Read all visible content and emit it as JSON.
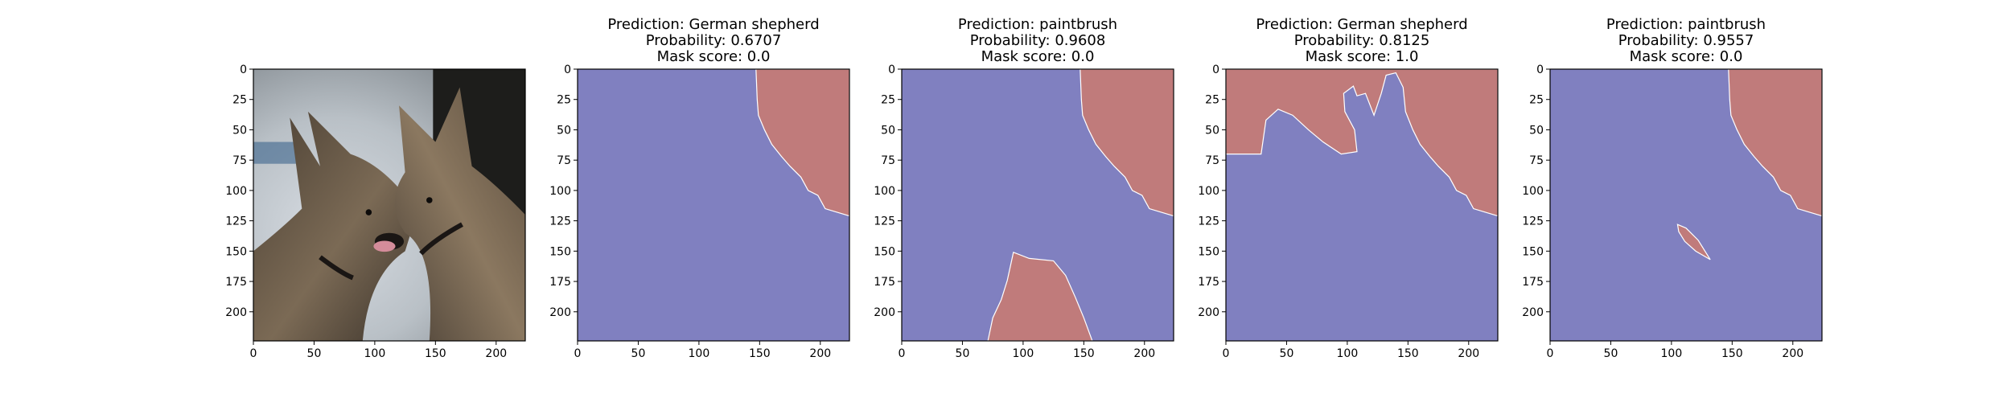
{
  "chart_data": [
    {
      "type": "image",
      "title_lines": [],
      "image": "dog-photo",
      "xticks": [
        0,
        50,
        100,
        150,
        200
      ],
      "yticks": [
        0,
        25,
        50,
        75,
        100,
        125,
        150,
        175,
        200
      ],
      "xlim": [
        0,
        224
      ],
      "ylim": [
        224,
        0
      ]
    },
    {
      "type": "heatmap",
      "title_lines": [
        "Prediction: German shepherd",
        "Probability: 0.6707",
        "Mask score: 0.0"
      ],
      "xticks": [
        0,
        50,
        100,
        150,
        200
      ],
      "yticks": [
        0,
        25,
        50,
        75,
        100,
        125,
        150,
        175,
        200
      ],
      "xlim": [
        0,
        224
      ],
      "ylim": [
        224,
        0
      ],
      "background_color": "#8080c0",
      "mask_color": "#c07b7b",
      "mask_regions": [
        [
          [
            147,
            0
          ],
          [
            224,
            0
          ],
          [
            224,
            121
          ],
          [
            214,
            118
          ],
          [
            204,
            115
          ],
          [
            198,
            104
          ],
          [
            190,
            100
          ],
          [
            184,
            89
          ],
          [
            175,
            80
          ],
          [
            168,
            72
          ],
          [
            160,
            62
          ],
          [
            154,
            50
          ],
          [
            149,
            38
          ],
          [
            148,
            25
          ]
        ]
      ]
    },
    {
      "type": "heatmap",
      "title_lines": [
        "Prediction: paintbrush",
        "Probability: 0.9608",
        "Mask score: 0.0"
      ],
      "xticks": [
        0,
        50,
        100,
        150,
        200
      ],
      "yticks": [
        0,
        25,
        50,
        75,
        100,
        125,
        150,
        175,
        200
      ],
      "xlim": [
        0,
        224
      ],
      "ylim": [
        224,
        0
      ],
      "background_color": "#8080c0",
      "mask_color": "#c07b7b",
      "mask_regions": [
        [
          [
            147,
            0
          ],
          [
            224,
            0
          ],
          [
            224,
            121
          ],
          [
            214,
            118
          ],
          [
            204,
            115
          ],
          [
            198,
            104
          ],
          [
            190,
            100
          ],
          [
            184,
            89
          ],
          [
            175,
            80
          ],
          [
            168,
            72
          ],
          [
            160,
            62
          ],
          [
            154,
            50
          ],
          [
            149,
            38
          ],
          [
            148,
            25
          ]
        ],
        [
          [
            71,
            224
          ],
          [
            75,
            205
          ],
          [
            82,
            190
          ],
          [
            87,
            174
          ],
          [
            92,
            151
          ],
          [
            105,
            156
          ],
          [
            125,
            158
          ],
          [
            135,
            170
          ],
          [
            143,
            188
          ],
          [
            150,
            205
          ],
          [
            157,
            224
          ]
        ]
      ]
    },
    {
      "type": "heatmap",
      "title_lines": [
        "Prediction: German shepherd",
        "Probability: 0.8125",
        "Mask score: 1.0"
      ],
      "xticks": [
        0,
        50,
        100,
        150,
        200
      ],
      "yticks": [
        0,
        25,
        50,
        75,
        100,
        125,
        150,
        175,
        200
      ],
      "xlim": [
        0,
        224
      ],
      "ylim": [
        224,
        0
      ],
      "background_color": "#8080c0",
      "mask_color": "#c07b7b",
      "mask_regions": [
        [
          [
            0,
            0
          ],
          [
            224,
            0
          ],
          [
            224,
            121
          ],
          [
            214,
            118
          ],
          [
            204,
            115
          ],
          [
            198,
            104
          ],
          [
            190,
            100
          ],
          [
            184,
            89
          ],
          [
            175,
            80
          ],
          [
            168,
            72
          ],
          [
            160,
            62
          ],
          [
            154,
            50
          ],
          [
            148,
            35
          ],
          [
            146,
            15
          ],
          [
            140,
            3
          ],
          [
            132,
            5
          ],
          [
            128,
            20
          ],
          [
            122,
            38
          ],
          [
            115,
            20
          ],
          [
            108,
            22
          ],
          [
            105,
            14
          ],
          [
            97,
            20
          ],
          [
            98,
            35
          ],
          [
            106,
            50
          ],
          [
            108,
            68
          ],
          [
            95,
            70
          ],
          [
            80,
            60
          ],
          [
            68,
            50
          ],
          [
            55,
            38
          ],
          [
            43,
            33
          ],
          [
            33,
            42
          ],
          [
            29,
            70
          ],
          [
            0,
            70
          ]
        ]
      ]
    },
    {
      "type": "heatmap",
      "title_lines": [
        "Prediction: paintbrush",
        "Probability: 0.9557",
        "Mask score: 0.0"
      ],
      "xticks": [
        0,
        50,
        100,
        150,
        200
      ],
      "yticks": [
        0,
        25,
        50,
        75,
        100,
        125,
        150,
        175,
        200
      ],
      "xlim": [
        0,
        224
      ],
      "ylim": [
        224,
        0
      ],
      "background_color": "#8080c0",
      "mask_color": "#c07b7b",
      "mask_regions": [
        [
          [
            147,
            0
          ],
          [
            224,
            0
          ],
          [
            224,
            121
          ],
          [
            214,
            118
          ],
          [
            204,
            115
          ],
          [
            198,
            104
          ],
          [
            190,
            100
          ],
          [
            184,
            89
          ],
          [
            175,
            80
          ],
          [
            168,
            72
          ],
          [
            160,
            62
          ],
          [
            154,
            50
          ],
          [
            149,
            38
          ],
          [
            148,
            25
          ]
        ],
        [
          [
            105,
            128
          ],
          [
            112,
            131
          ],
          [
            122,
            141
          ],
          [
            132,
            157
          ],
          [
            120,
            150
          ],
          [
            111,
            142
          ],
          [
            106,
            134
          ]
        ]
      ]
    }
  ]
}
